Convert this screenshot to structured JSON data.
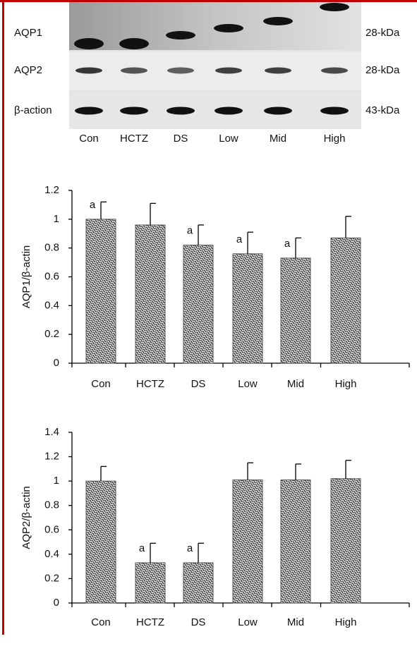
{
  "blot": {
    "rows": [
      {
        "label": "AQP1",
        "size": "28-kDa"
      },
      {
        "label": "AQP2",
        "size": "28-kDa"
      },
      {
        "label": "β-action",
        "size": "43-kDa"
      }
    ],
    "lanes": [
      "Con",
      "HCTZ",
      "DS",
      "Low",
      "Mid",
      "High"
    ]
  },
  "chart_data": [
    {
      "type": "bar",
      "y_label": "AQP1/β-actin",
      "categories": [
        "Con",
        "HCTZ",
        "DS",
        "Low",
        "Mid",
        "High"
      ],
      "values": [
        1.0,
        0.96,
        0.82,
        0.76,
        0.73,
        0.87
      ],
      "errors": [
        0.12,
        0.15,
        0.14,
        0.15,
        0.14,
        0.15
      ],
      "value_annotations": [
        "a",
        null,
        "a",
        "a",
        "a",
        null
      ],
      "color": "#333333",
      "ylim": [
        0,
        1.2
      ],
      "yticks": [
        0,
        0.2,
        0.4,
        0.6,
        0.8,
        1,
        1.2
      ],
      "grid": false
    },
    {
      "type": "bar",
      "y_label": "AQP2/β-actin",
      "categories": [
        "Con",
        "HCTZ",
        "DS",
        "Low",
        "Mid",
        "High"
      ],
      "values": [
        1.0,
        0.33,
        0.33,
        1.01,
        1.01,
        1.02
      ],
      "errors": [
        0.12,
        0.16,
        0.16,
        0.14,
        0.13,
        0.15
      ],
      "value_annotations": [
        null,
        "a",
        "a",
        null,
        null,
        null
      ],
      "color": "#333333",
      "ylim": [
        0,
        1.4
      ],
      "yticks": [
        0,
        0.2,
        0.4,
        0.6,
        0.8,
        1,
        1.2,
        1.4
      ],
      "grid": false
    }
  ]
}
